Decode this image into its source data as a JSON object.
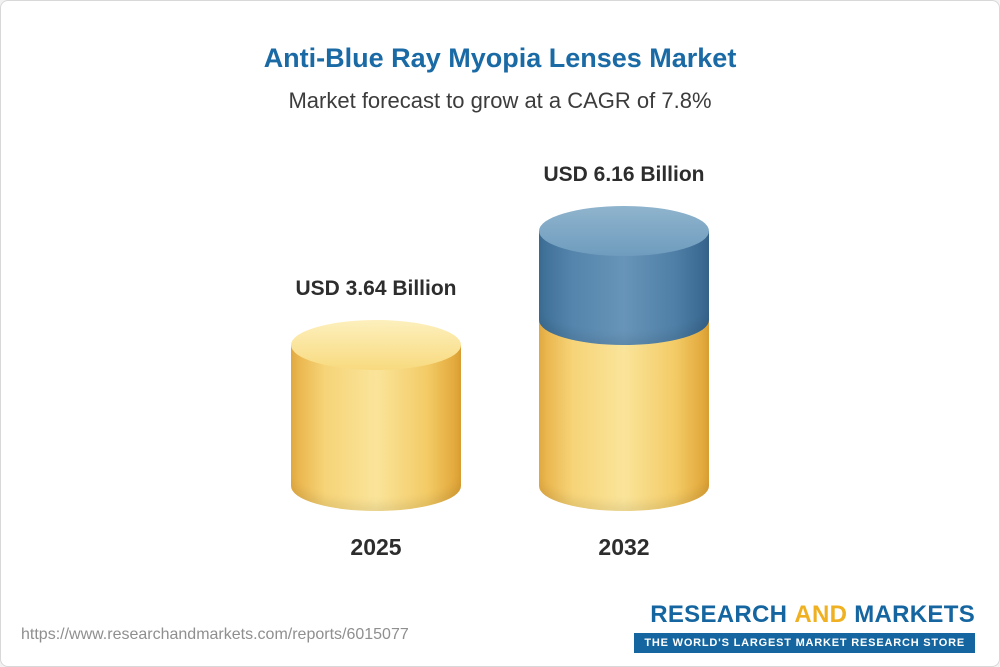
{
  "header": {
    "title": "Anti-Blue Ray Myopia Lenses Market",
    "subtitle": "Market forecast to grow at a CAGR of 7.8%"
  },
  "chart_data": {
    "type": "bar",
    "bar_style": "3d-cylinder",
    "unit": "USD Billion",
    "categories": [
      "2025",
      "2032"
    ],
    "values": [
      3.64,
      6.16
    ],
    "value_labels": [
      "USD 3.64 Billion",
      "USD 6.16 Billion"
    ],
    "cagr": "7.8%",
    "stacked_segments_2032": {
      "base": 3.64,
      "growth": 2.52
    },
    "colors": {
      "base": "#f5cf6d",
      "growth": "#4e80a8",
      "title": "#1a6aa5"
    },
    "ylim": [
      0,
      6.16
    ],
    "grid": false,
    "legend": "none"
  },
  "footer": {
    "report_url": "https://www.researchandmarkets.com/reports/6015077",
    "logo": {
      "part1": "RESEARCH",
      "part2": "AND",
      "part3": "MARKETS",
      "tagline": "THE WORLD'S LARGEST MARKET RESEARCH STORE"
    }
  }
}
